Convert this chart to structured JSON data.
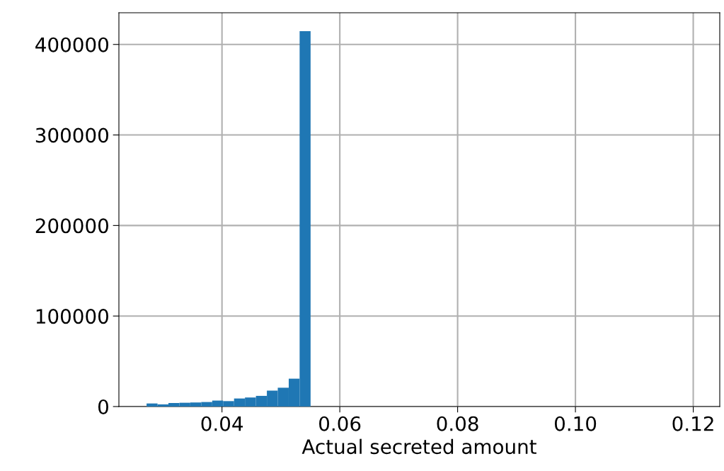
{
  "chart_data": {
    "type": "histogram",
    "xlabel": "Actual secreted amount",
    "bins": [
      0.0272,
      0.02906,
      0.03091,
      0.03277,
      0.03462,
      0.03648,
      0.03834,
      0.04019,
      0.04205,
      0.0439,
      0.04576,
      0.04762,
      0.04947,
      0.05133,
      0.05318,
      0.05504
    ],
    "values": [
      3400,
      2400,
      3900,
      4200,
      4500,
      5000,
      6600,
      6000,
      8900,
      10000,
      11800,
      17600,
      20800,
      30800,
      414700
    ],
    "color": "#1f77b4",
    "xlim": [
      0.0225,
      0.1245
    ],
    "xticks": [
      {
        "value": 0.04,
        "label": "0.04"
      },
      {
        "value": 0.06,
        "label": "0.06"
      },
      {
        "value": 0.08,
        "label": "0.08"
      },
      {
        "value": 0.1,
        "label": "0.10"
      },
      {
        "value": 0.12,
        "label": "0.12"
      }
    ],
    "ylim": [
      0,
      435000
    ],
    "yticks": [
      0,
      100000,
      200000,
      300000,
      400000
    ],
    "grid": true
  }
}
